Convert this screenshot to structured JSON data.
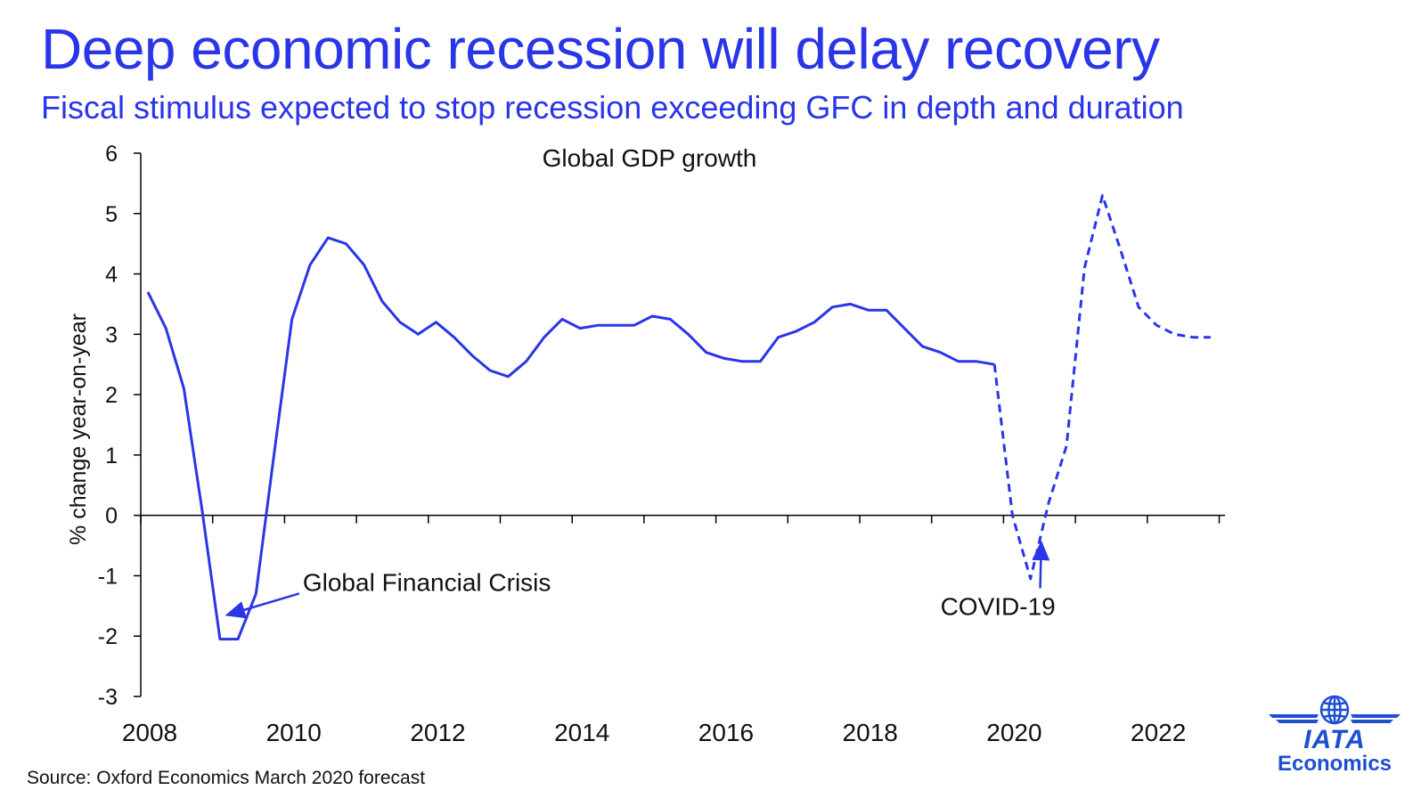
{
  "title": "Deep economic recession will delay recovery",
  "subtitle": "Fiscal stimulus expected to stop recession exceeding GFC in depth and duration",
  "source": "Source: Oxford Economics March 2020 forecast",
  "logo": {
    "wordmark": "IATA",
    "caption": "Economics",
    "icon": "globe-wings-icon"
  },
  "colors": {
    "accent": "#2A35E8",
    "line": "#2A35E8",
    "logo": "#1f4fd1"
  },
  "chart_data": {
    "type": "line",
    "title": "Global GDP growth",
    "xlabel": "",
    "ylabel": "% change year-on-year",
    "xlim": [
      2008,
      2023
    ],
    "ylim": [
      -3,
      6
    ],
    "yticks": [
      -3,
      -2,
      -1,
      0,
      1,
      2,
      3,
      4,
      5,
      6
    ],
    "xticks": [
      2008,
      2010,
      2012,
      2014,
      2016,
      2018,
      2020,
      2022
    ],
    "grid": false,
    "legend": "none",
    "series": [
      {
        "style": "solid",
        "x": [
          2008.0,
          2008.25,
          2008.5,
          2008.75,
          2009.0,
          2009.25,
          2009.5,
          2009.75,
          2010.0,
          2010.25,
          2010.5,
          2010.75,
          2011.0,
          2011.25,
          2011.5,
          2011.75,
          2012.0,
          2012.25,
          2012.5,
          2012.75,
          2013.0,
          2013.25,
          2013.5,
          2013.75,
          2014.0,
          2014.25,
          2014.5,
          2014.75,
          2015.0,
          2015.25,
          2015.5,
          2015.75,
          2016.0,
          2016.25,
          2016.5,
          2016.75,
          2017.0,
          2017.25,
          2017.5,
          2017.75,
          2018.0,
          2018.25,
          2018.5,
          2018.75,
          2019.0,
          2019.25,
          2019.5,
          2019.75
        ],
        "y": [
          3.7,
          3.1,
          2.1,
          0.1,
          -2.05,
          -2.05,
          -1.3,
          1.0,
          3.25,
          4.15,
          4.6,
          4.5,
          4.15,
          3.55,
          3.2,
          3.0,
          3.2,
          2.95,
          2.65,
          2.4,
          2.3,
          2.55,
          2.95,
          3.25,
          3.1,
          3.15,
          3.15,
          3.15,
          3.3,
          3.25,
          3.0,
          2.7,
          2.6,
          2.55,
          2.55,
          2.95,
          3.05,
          3.2,
          3.45,
          3.5,
          3.4,
          3.4,
          3.1,
          2.8,
          2.7,
          2.55,
          2.55,
          2.5
        ]
      },
      {
        "style": "dashed",
        "x": [
          2019.75,
          2020.0,
          2020.25,
          2020.5,
          2020.75,
          2021.0,
          2021.25,
          2021.5,
          2021.75,
          2022.0,
          2022.25,
          2022.5,
          2022.75
        ],
        "y": [
          2.5,
          0.0,
          -1.05,
          0.2,
          1.15,
          4.1,
          5.3,
          4.4,
          3.45,
          3.15,
          3.0,
          2.95,
          2.95
        ]
      }
    ],
    "annotations": [
      {
        "text": "Global Financial Crisis",
        "text_x": 2010.15,
        "text_y": -1.25,
        "arrow_to_x": 2009.1,
        "arrow_to_y": -1.65
      },
      {
        "text": "COVID-19",
        "text_x": 2019.0,
        "text_y": -1.65,
        "arrow_to_x": 2020.4,
        "arrow_to_y": -0.45
      }
    ]
  }
}
